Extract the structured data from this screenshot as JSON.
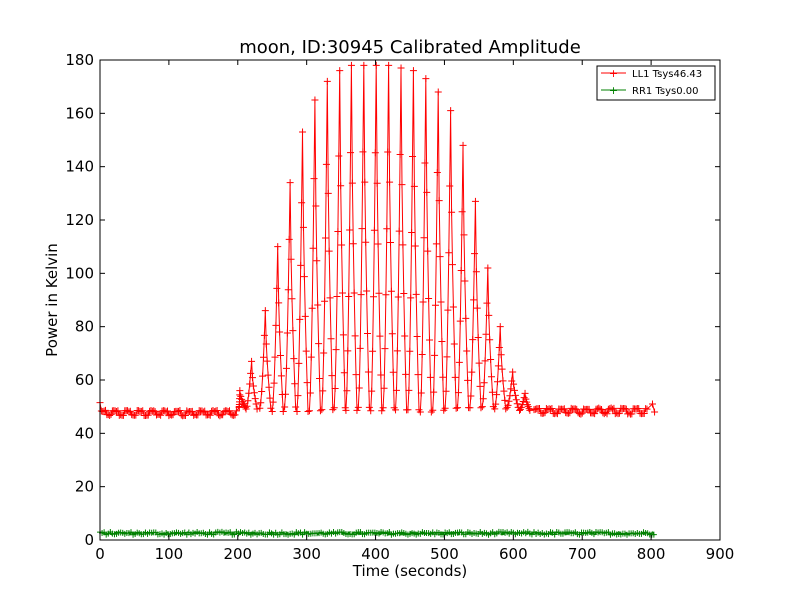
{
  "chart_data": {
    "type": "line",
    "title": "moon, ID:30945 Calibrated Amplitude",
    "xlabel": "Time (seconds)",
    "ylabel": "Power in Kelvin",
    "xlim": [
      0,
      900
    ],
    "ylim": [
      0,
      180
    ],
    "xticks": [
      "0",
      "100",
      "200",
      "300",
      "400",
      "500",
      "600",
      "700",
      "800",
      "900"
    ],
    "yticks": [
      "0",
      "20",
      "40",
      "60",
      "80",
      "100",
      "120",
      "140",
      "160",
      "180"
    ],
    "grid": false,
    "legend_position": "top-right",
    "duration": 805,
    "series": [
      {
        "name": "LL1 Tsys46.43",
        "color": "#ff0000",
        "marker": "+",
        "baseline": 48,
        "start_value": 51.5,
        "end_value": 48,
        "peak_profile": [
          {
            "x": 203,
            "y": 56
          },
          {
            "x": 220,
            "y": 67
          },
          {
            "x": 240,
            "y": 86
          },
          {
            "x": 258,
            "y": 110
          },
          {
            "x": 276,
            "y": 134
          },
          {
            "x": 294,
            "y": 153
          },
          {
            "x": 312,
            "y": 165
          },
          {
            "x": 330,
            "y": 172
          },
          {
            "x": 348,
            "y": 176
          },
          {
            "x": 365,
            "y": 178
          },
          {
            "x": 383,
            "y": 178
          },
          {
            "x": 401,
            "y": 178
          },
          {
            "x": 419,
            "y": 178
          },
          {
            "x": 437,
            "y": 177
          },
          {
            "x": 455,
            "y": 176
          },
          {
            "x": 473,
            "y": 173
          },
          {
            "x": 491,
            "y": 168
          },
          {
            "x": 509,
            "y": 161
          },
          {
            "x": 527,
            "y": 148
          },
          {
            "x": 545,
            "y": 127
          },
          {
            "x": 563,
            "y": 102
          },
          {
            "x": 581,
            "y": 80
          },
          {
            "x": 599,
            "y": 63
          },
          {
            "x": 617,
            "y": 55
          }
        ]
      },
      {
        "name": "RR1 Tsys0.00",
        "color": "#008000",
        "marker": "+",
        "baseline": 2.5,
        "start_value": 2.5,
        "end_value": 2.5
      }
    ]
  }
}
